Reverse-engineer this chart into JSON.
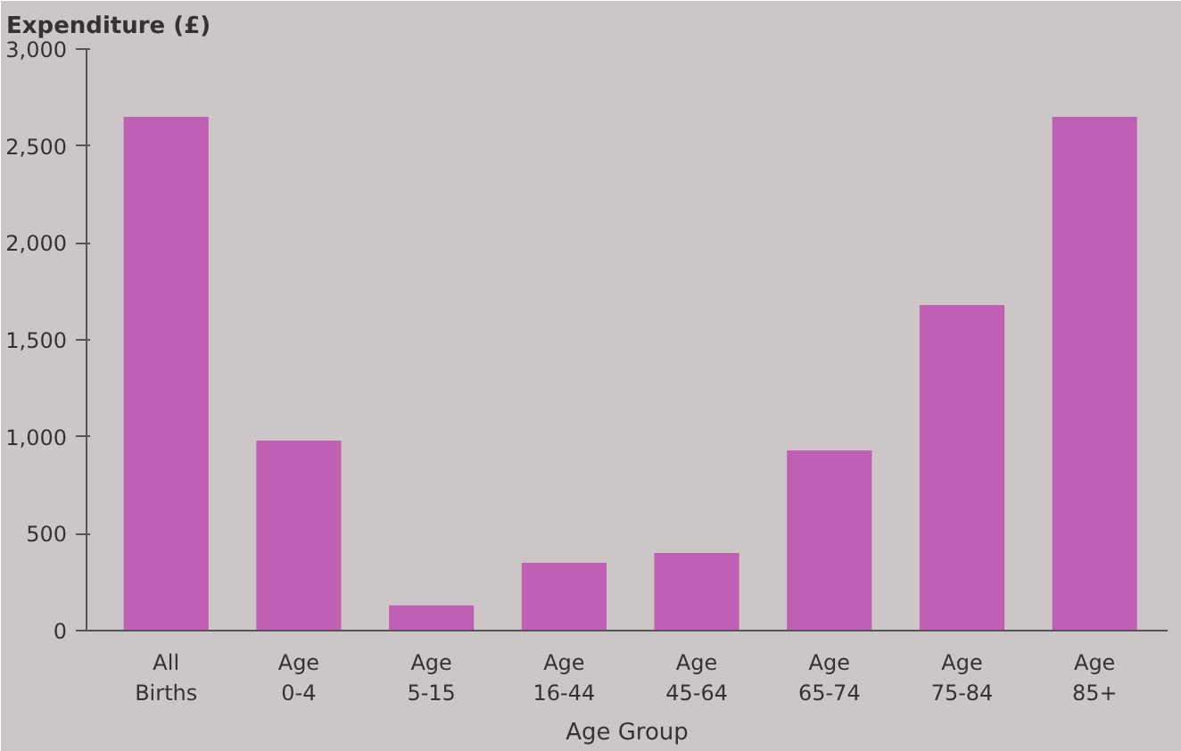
{
  "chart_data": {
    "type": "bar",
    "ylabel": "Expenditure (£)",
    "xlabel": "Age Group",
    "categories": [
      "All\nBirths",
      "Age\n0-4",
      "Age\n5-15",
      "Age\n16-44",
      "Age\n45-64",
      "Age\n65-74",
      "Age\n75-84",
      "Age\n85+"
    ],
    "values": [
      2650,
      980,
      130,
      350,
      400,
      930,
      1680,
      2650
    ],
    "color": "#c060b4",
    "ylim": [
      0,
      3000
    ],
    "yticks": [
      0,
      500,
      {
        "value": 1000,
        "label": "1,000"
      },
      {
        "value": 1500,
        "label": "1,500"
      },
      {
        "value": 2000,
        "label": "2,000"
      },
      {
        "value": 2500,
        "label": "2,500"
      },
      {
        "value": 3000,
        "label": "3,000"
      }
    ],
    "grid": false
  }
}
